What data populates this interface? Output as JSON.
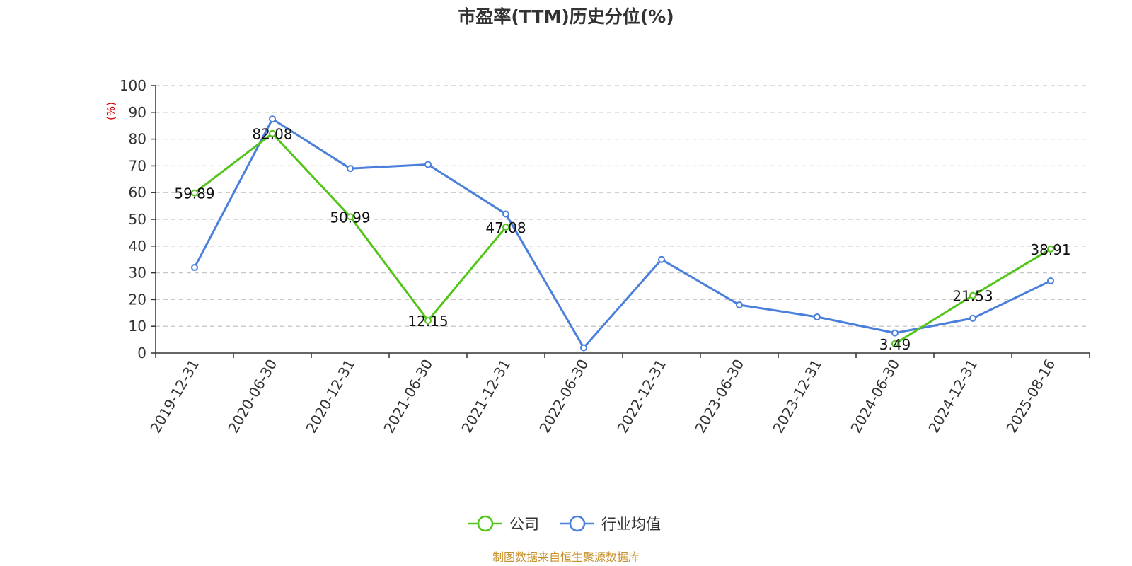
{
  "chart_data": {
    "type": "line",
    "title": "市盈率(TTM)历史分位(%)",
    "ylabel": "(%)",
    "xlabel": "",
    "ylim": [
      0,
      100
    ],
    "yticks": [
      0,
      10,
      20,
      30,
      40,
      50,
      60,
      70,
      80,
      90,
      100
    ],
    "grid": true,
    "legend_position": "bottom",
    "categories": [
      "2019-12-31",
      "2020-06-30",
      "2020-12-31",
      "2021-06-30",
      "2021-12-31",
      "2022-06-30",
      "2022-12-31",
      "2023-06-30",
      "2023-12-31",
      "2024-06-30",
      "2024-12-31",
      "2025-08-16"
    ],
    "series": [
      {
        "name": "公司",
        "color": "#52c41a",
        "values": [
          59.89,
          82.08,
          50.99,
          12.15,
          47.08,
          null,
          null,
          null,
          null,
          3.49,
          21.53,
          38.91
        ],
        "labels": [
          "59.89",
          "82.08",
          "50.99",
          "12.15",
          "47.08",
          null,
          null,
          null,
          null,
          "3.49",
          "21.53",
          "38.91"
        ]
      },
      {
        "name": "行业均值",
        "color": "#4a7fdc",
        "values": [
          32,
          87.5,
          69,
          70.5,
          52,
          2,
          35,
          18,
          13.5,
          7.5,
          13,
          27
        ]
      }
    ],
    "source": "制图数据来自恒生聚源数据库"
  }
}
